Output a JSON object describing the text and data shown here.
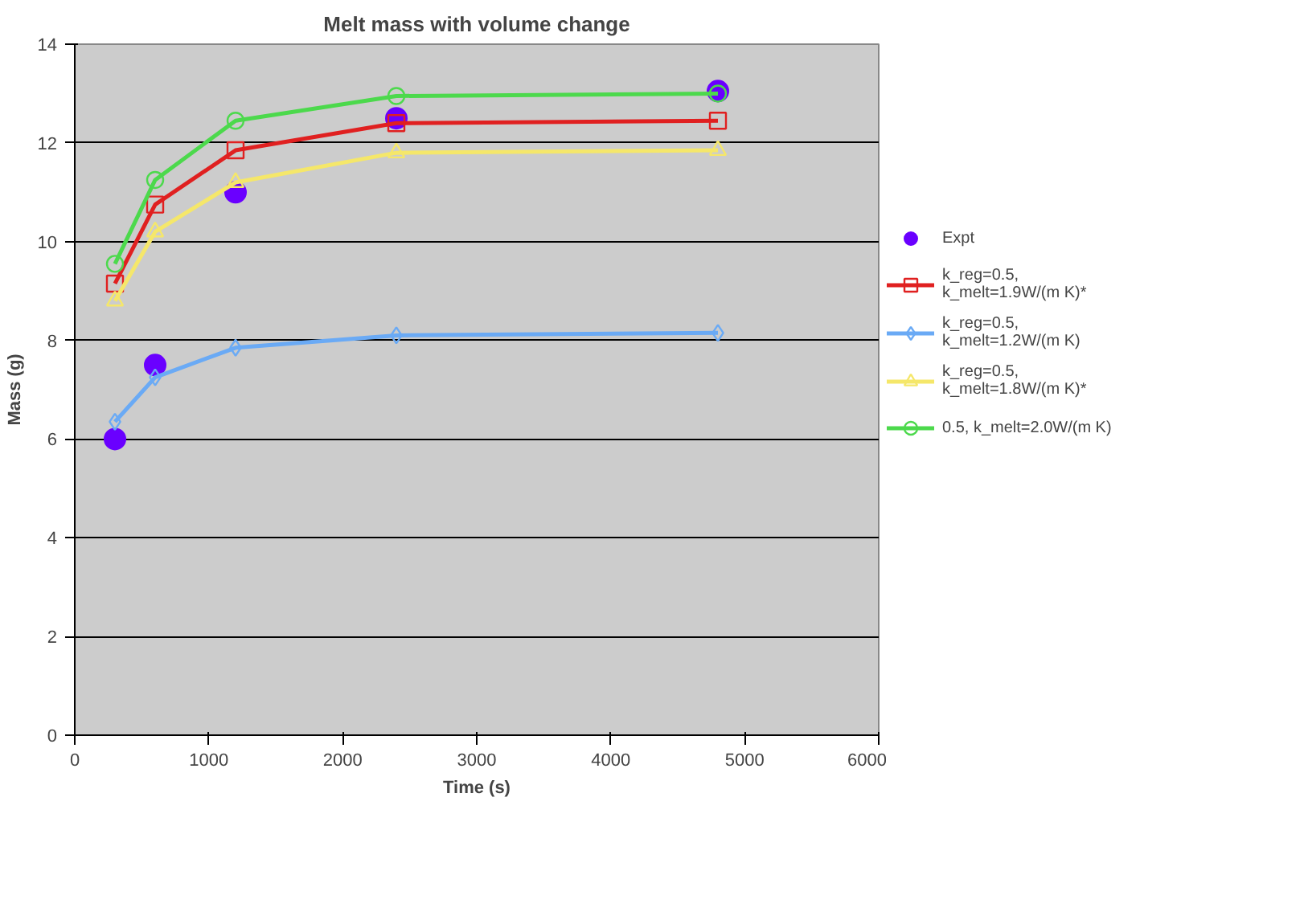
{
  "chart_data": {
    "type": "line",
    "title": "Melt mass with volume change",
    "xlabel": "Time (s)",
    "ylabel": "Mass (g)",
    "x": [
      300,
      600,
      1200,
      2400,
      4800
    ],
    "xlim": [
      0,
      6000
    ],
    "xticks": [
      0,
      1000,
      2000,
      3000,
      4000,
      5000,
      6000
    ],
    "ylim": [
      0,
      14
    ],
    "yticks": [
      0,
      2,
      4,
      6,
      8,
      10,
      12,
      14
    ],
    "grid": "y",
    "legend": "right",
    "series": [
      {
        "name": "Expt",
        "type": "scatter",
        "marker": "circle",
        "color": "#6a00ff",
        "values": [
          6.0,
          7.5,
          11.0,
          12.5,
          13.05
        ]
      },
      {
        "name": "k_reg=0.5,\nk_melt=1.9W/(m K)*",
        "marker": "square",
        "color": "#e02020",
        "values": [
          9.15,
          10.75,
          11.85,
          12.4,
          12.45
        ]
      },
      {
        "name": "k_reg=0.5,\nk_melt=1.2W/(m K)",
        "marker": "diamond",
        "color": "#6aaaf5",
        "values": [
          6.35,
          7.25,
          7.85,
          8.1,
          8.15
        ]
      },
      {
        "name": "k_reg=0.5,\nk_melt=1.8W/(m K)*",
        "marker": "triangle",
        "color": "#f5e76a",
        "values": [
          8.8,
          10.2,
          11.2,
          11.8,
          11.85
        ]
      },
      {
        "name": "0.5, k_melt=2.0W/(m K)",
        "marker": "circle",
        "color": "#4cd94c",
        "values": [
          9.55,
          11.25,
          12.45,
          12.95,
          13.0
        ]
      }
    ]
  }
}
